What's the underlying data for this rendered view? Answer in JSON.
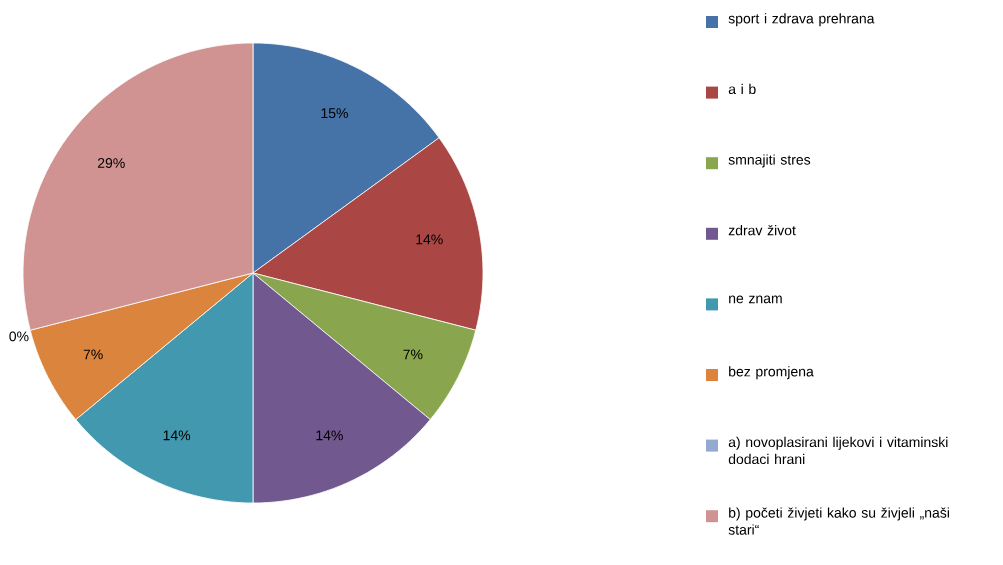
{
  "chart_data": {
    "type": "pie",
    "categories": [
      "sport i zdrava prehrana",
      "a i b",
      "smnajiti stres",
      "zdrav život",
      "ne znam",
      "bez promjena",
      "a) novoplasirani lijekovi i vitaminski dodaci hrani",
      "b) početi živjeti kako su živjeli „naši stari“"
    ],
    "values": [
      15,
      14,
      7,
      14,
      14,
      7,
      0,
      29
    ],
    "value_labels": [
      "15%",
      "14%",
      "7%",
      "14%",
      "14%",
      "7%",
      "0%",
      "29%"
    ],
    "colors": [
      "#4572a7",
      "#aa4643",
      "#89a54e",
      "#71588f",
      "#4198af",
      "#db843d",
      "#93a9cf",
      "#d19392"
    ],
    "legend": "right"
  }
}
